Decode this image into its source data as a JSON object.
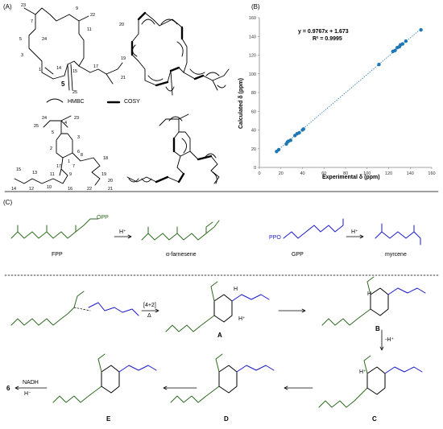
{
  "panels": {
    "a": "(A)",
    "b": "(B)",
    "c": "(C)"
  },
  "panel_a": {
    "compound_top": "5",
    "legend_hmbc": "HMBC",
    "legend_cosy": "COSY",
    "atom_numbers_top": [
      "23",
      "7",
      "9",
      "22",
      "11",
      "20",
      "5",
      "24",
      "3",
      "1",
      "15",
      "14",
      "17",
      "19",
      "21",
      "25"
    ],
    "atom_numbers_bottom": [
      "24",
      "25",
      "4",
      "23",
      "5",
      "3",
      "2",
      "6",
      "1",
      "17",
      "7",
      "8",
      "18",
      "19",
      "15",
      "13",
      "11",
      "9",
      "20",
      "14",
      "12",
      "10",
      "16",
      "22",
      "21"
    ]
  },
  "chart_data": {
    "type": "scatter",
    "title": "",
    "xlabel": "Experimental δ (ppm)",
    "ylabel": "Calculated δ (ppm)",
    "xlim": [
      0,
      160
    ],
    "ylim": [
      0,
      160
    ],
    "xticks": [
      "0",
      "20",
      "40",
      "60",
      "80",
      "100",
      "120",
      "140",
      "160"
    ],
    "yticks": [
      "0",
      "20",
      "40",
      "60",
      "80",
      "100",
      "120",
      "140",
      "160"
    ],
    "equation": "y = 0.9767x + 1.673",
    "r_squared": "R² = 0.9995",
    "trendline": {
      "slope": 0.9767,
      "intercept": 1.673
    },
    "points": [
      {
        "x": 16,
        "y": 17
      },
      {
        "x": 18,
        "y": 19
      },
      {
        "x": 25,
        "y": 25
      },
      {
        "x": 26,
        "y": 27
      },
      {
        "x": 27,
        "y": 28
      },
      {
        "x": 29,
        "y": 29
      },
      {
        "x": 33,
        "y": 34
      },
      {
        "x": 35,
        "y": 36
      },
      {
        "x": 37,
        "y": 37
      },
      {
        "x": 40,
        "y": 40
      },
      {
        "x": 41,
        "y": 41
      },
      {
        "x": 111,
        "y": 110
      },
      {
        "x": 124,
        "y": 124
      },
      {
        "x": 126,
        "y": 125
      },
      {
        "x": 128,
        "y": 128
      },
      {
        "x": 130,
        "y": 129
      },
      {
        "x": 131,
        "y": 131
      },
      {
        "x": 133,
        "y": 132
      },
      {
        "x": 136,
        "y": 135
      },
      {
        "x": 150,
        "y": 147
      }
    ],
    "color": "#1f77b4"
  },
  "panel_c": {
    "fpp": "FPP",
    "opp": "OPP",
    "farnesene": "α-farnesene",
    "gpp": "GPP",
    "ppo": "PPO",
    "myrcene": "myrcene",
    "h_plus": "H⁺",
    "minus_h_plus": "-H⁺",
    "diels_alder": "[4+2]",
    "delta": "Δ",
    "nadh": "NADH",
    "h_minus": "H⁻",
    "product": "6",
    "h": "H",
    "intermediates": [
      "A",
      "B",
      "C",
      "D",
      "E"
    ],
    "green": "#2e6b1f",
    "blue": "#1a1acc"
  }
}
